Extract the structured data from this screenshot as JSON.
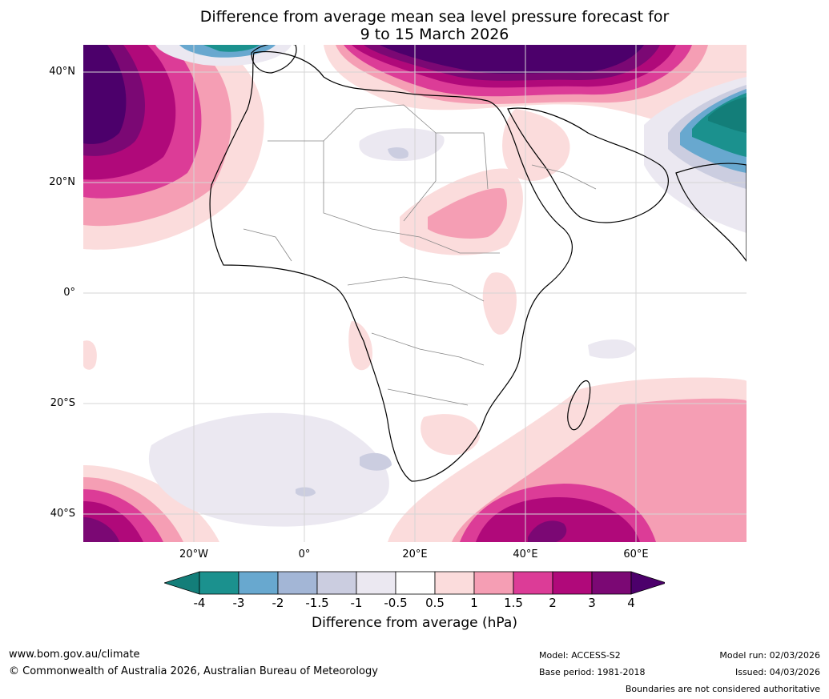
{
  "title_line1": "Difference from average mean sea level pressure forecast for",
  "title_line2": "9 to 15 March 2026",
  "lat_labels": [
    "40°N",
    "20°N",
    "0°",
    "20°S",
    "40°S"
  ],
  "lon_labels": [
    "20°W",
    "0°",
    "20°E",
    "40°E",
    "60°E"
  ],
  "colorbar": {
    "title": "Difference from average (hPa)",
    "ticks": [
      "-4",
      "-3",
      "-2",
      "-1.5",
      "-1",
      "-0.5",
      "0.5",
      "1",
      "1.5",
      "2",
      "3",
      "4"
    ],
    "colors": [
      "#137e79",
      "#1b918e",
      "#68a8cf",
      "#a3b6d6",
      "#cbcde0",
      "#ebe8f1",
      "#ffffff",
      "#fbdcdc",
      "#f59eb4",
      "#dc3c97",
      "#b0097a",
      "#7b0874",
      "#4c006b"
    ]
  },
  "footer": {
    "website": "www.bom.gov.au/climate",
    "copyright": "© Commonwealth of Australia 2026, Australian Bureau of Meteorology",
    "model": "Model: ACCESS-S2",
    "base_period": "Base period: 1981-2018",
    "model_run": "Model run: 02/03/2026",
    "issued": "Issued: 04/03/2026",
    "disclaimer": "Boundaries are not considered authoritative"
  }
}
